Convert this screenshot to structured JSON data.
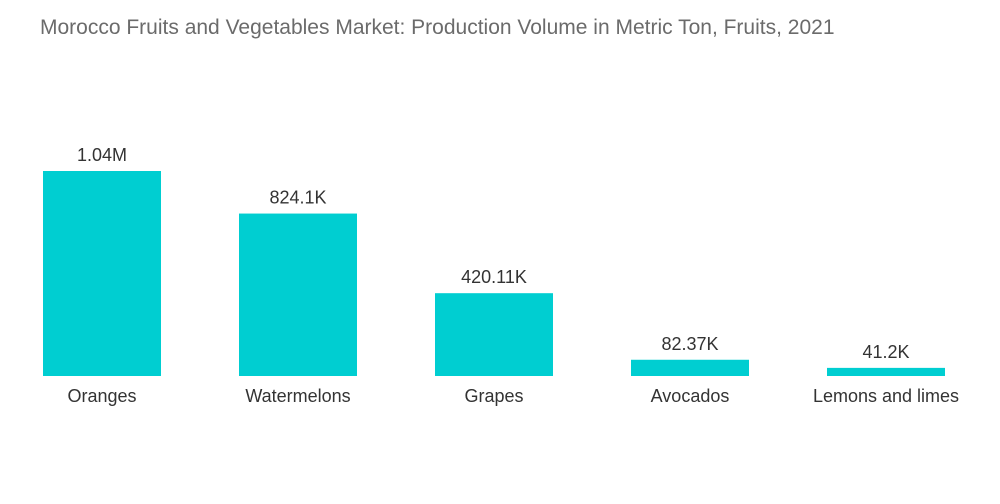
{
  "chart_data": {
    "type": "bar",
    "title": "Morocco Fruits and Vegetables Market: Production Volume in Metric Ton, Fruits, 2021",
    "xlabel": "",
    "ylabel": "",
    "categories": [
      "Oranges",
      "Watermelons",
      "Grapes",
      "Avocados",
      "Lemons and limes"
    ],
    "values": [
      1040000,
      824100,
      420110,
      82370,
      41200
    ],
    "value_labels": [
      "1.04M",
      "824.1K",
      "420.11K",
      "82.37K",
      "41.2K"
    ],
    "ylim": [
      0,
      1040000
    ],
    "grid": false,
    "color": "#00ced1"
  }
}
